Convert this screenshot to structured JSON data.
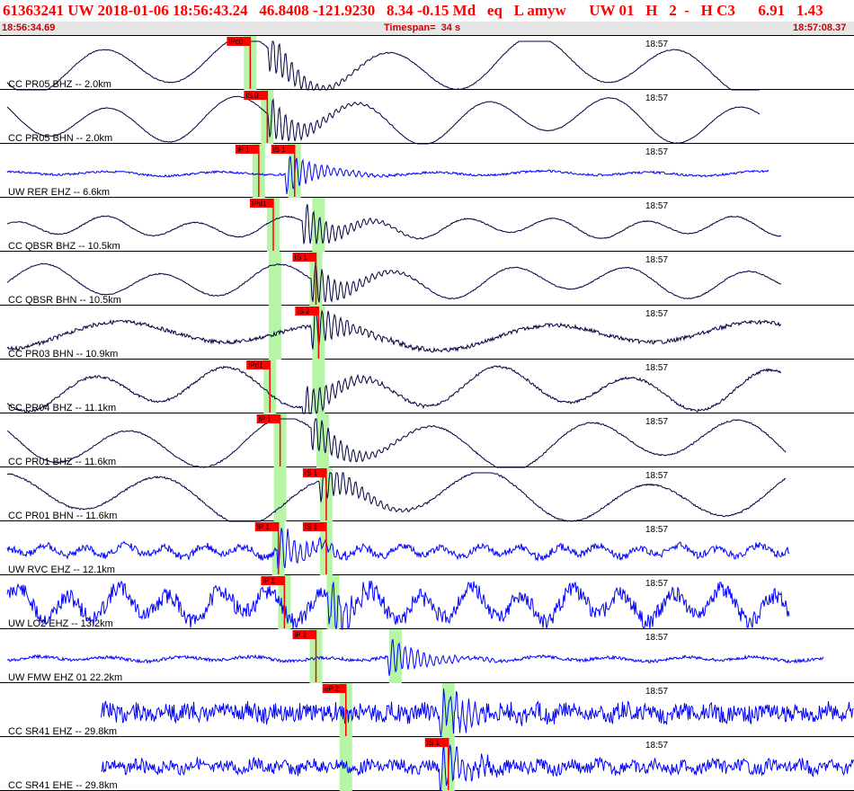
{
  "header": {
    "title": "61363241 UW 2018-01-06 18:56:43.24   46.8408 -121.9230   8.34 -0.15 Md   eq   L amyw      UW 01   H   2  -   H C3      6.91   1.43",
    "start_time": "18:56:34.69",
    "timespan": "Timespan=  34 s",
    "end_time": "18:57:08.37"
  },
  "colors": {
    "accent": "#ff0000",
    "highlight": "#b6f5a6",
    "trace_cc": "#000040",
    "trace_uw": "#0000ff",
    "pick": "#ff0000"
  },
  "traces": [
    {
      "label": "CC PR05 BHZ -- 2.0km",
      "time_label": "18:57",
      "color": "dark",
      "kind": "smooth",
      "amp": 24,
      "noise": 0.5,
      "per": 80,
      "seed": 1,
      "end": 0.89,
      "picks": [
        {
          "label": "IPc0",
          "t": 0.293,
          "green": true
        }
      ],
      "event": 0.33
    },
    {
      "label": "CC PR05 BHN -- 2.0km",
      "time_label": "18:57",
      "color": "dark",
      "kind": "smooth",
      "amp": 20,
      "noise": 0.4,
      "per": 70,
      "seed": 2,
      "end": 0.89,
      "picks": [
        {
          "label": "IS 0",
          "t": 0.313,
          "green": true
        }
      ],
      "event": 0.33
    },
    {
      "label": "UW RER EHZ -- 6.6km",
      "time_label": "18:57",
      "color": "blue",
      "kind": "flat",
      "amp": 2,
      "noise": 1.2,
      "per": 60,
      "seed": 3,
      "end": 0.9,
      "picks": [
        {
          "label": "iP 1",
          "t": 0.303,
          "green": true
        },
        {
          "label": "iS 1",
          "t": 0.345,
          "green": true
        }
      ],
      "event": 0.35
    },
    {
      "label": "CC QBSR BHZ -- 10.5km",
      "time_label": "18:57",
      "color": "dark",
      "kind": "smooth",
      "amp": 9,
      "noise": 0.6,
      "per": 50,
      "seed": 4,
      "end": 0.915,
      "picks": [
        {
          "label": "IPd1",
          "t": 0.32,
          "green": true
        },
        {
          "label": "",
          "t": 0.373,
          "green": true
        }
      ],
      "event": 0.37
    },
    {
      "label": "CC QBSR BHN -- 10.5km",
      "time_label": "18:57",
      "color": "dark",
      "kind": "smooth",
      "amp": 14,
      "noise": 0.6,
      "per": 65,
      "seed": 5,
      "end": 0.915,
      "picks": [
        {
          "label": "IS 1",
          "t": 0.37,
          "green": true
        },
        {
          "label": "",
          "t": 0.322,
          "green": true
        }
      ],
      "event": 0.38
    },
    {
      "label": "CC PR03 BHN -- 10.9km",
      "time_label": "18:57",
      "color": "dark",
      "kind": "smooth",
      "amp": 12,
      "noise": 2.2,
      "per": 120,
      "seed": 6,
      "end": 0.915,
      "picks": [
        {
          "label": "IS 2",
          "t": 0.373,
          "green": true
        },
        {
          "label": "",
          "t": 0.322,
          "green": true
        }
      ],
      "event": 0.38
    },
    {
      "label": "CC PR04 BHZ -- 11.1km",
      "time_label": "18:57",
      "color": "dark",
      "kind": "smooth",
      "amp": 18,
      "noise": 1.4,
      "per": 75,
      "seed": 7,
      "end": 0.915,
      "picks": [
        {
          "label": "IPd1",
          "t": 0.316,
          "green": true
        },
        {
          "label": "",
          "t": 0.373,
          "green": true
        }
      ],
      "event": 0.37
    },
    {
      "label": "CC PR01 BHZ -- 11.6km",
      "time_label": "18:57",
      "color": "dark",
      "kind": "smooth",
      "amp": 22,
      "noise": 0.8,
      "per": 85,
      "seed": 8,
      "end": 0.92,
      "picks": [
        {
          "label": "IP 1",
          "t": 0.328,
          "green": true
        },
        {
          "label": "",
          "t": 0.378,
          "green": true
        }
      ],
      "event": 0.38
    },
    {
      "label": "CC PR01 BHN -- 11.6km",
      "time_label": "18:57",
      "color": "dark",
      "kind": "smooth",
      "amp": 22,
      "noise": 0.9,
      "per": 90,
      "seed": 9,
      "end": 0.92,
      "picks": [
        {
          "label": "IS 1",
          "t": 0.382,
          "green": true
        },
        {
          "label": "",
          "t": 0.328,
          "green": true
        }
      ],
      "event": 0.39
    },
    {
      "label": "UW RVC EHZ -- 12.1km",
      "time_label": "18:57",
      "color": "blue",
      "kind": "noisy",
      "amp": 5,
      "noise": 4,
      "per": 22,
      "seed": 10,
      "end": 0.925,
      "picks": [
        {
          "label": "IP 1",
          "t": 0.326,
          "green": true
        },
        {
          "label": "IS 1",
          "t": 0.382,
          "green": true
        }
      ],
      "event": 0.34
    },
    {
      "label": "UW LO2 EHZ -- 13.2km",
      "time_label": "18:57",
      "color": "blue",
      "kind": "noisy",
      "amp": 14,
      "noise": 9,
      "per": 28,
      "seed": 11,
      "end": 0.925,
      "picks": [
        {
          "label": "iP 1",
          "t": 0.333,
          "green": true
        },
        {
          "label": "",
          "t": 0.39,
          "green": true
        }
      ],
      "event": 0.4
    },
    {
      "label": "UW FMW EHZ 01 22.2km",
      "time_label": "18:57",
      "color": "blue",
      "kind": "flat",
      "amp": 2,
      "noise": 1.8,
      "per": 40,
      "seed": 12,
      "end": 0.965,
      "picks": [
        {
          "label": "iP 1",
          "t": 0.37,
          "green": true
        },
        {
          "label": "",
          "t": 0.463,
          "green": true
        }
      ],
      "event": 0.47
    },
    {
      "label": "CC SR41 EHZ -- 29.8km",
      "time_label": "18:57",
      "color": "blue",
      "kind": "noisy",
      "amp": 3,
      "noise": 10,
      "per": 16,
      "seed": 13,
      "end": 1.0,
      "start": 0.11,
      "picks": [
        {
          "label": "eP 2",
          "t": 0.405,
          "green": true
        },
        {
          "label": "",
          "t": 0.525,
          "green": true
        }
      ],
      "event": 0.53
    },
    {
      "label": "CC SR41 EHE -- 29.8km",
      "time_label": "18:57",
      "color": "blue",
      "kind": "noisy",
      "amp": 3,
      "noise": 7,
      "per": 16,
      "seed": 14,
      "end": 1.0,
      "start": 0.11,
      "picks": [
        {
          "label": "IS 1",
          "t": 0.525,
          "green": true
        },
        {
          "label": "",
          "t": 0.405,
          "green": true
        }
      ],
      "event": 0.53
    }
  ]
}
